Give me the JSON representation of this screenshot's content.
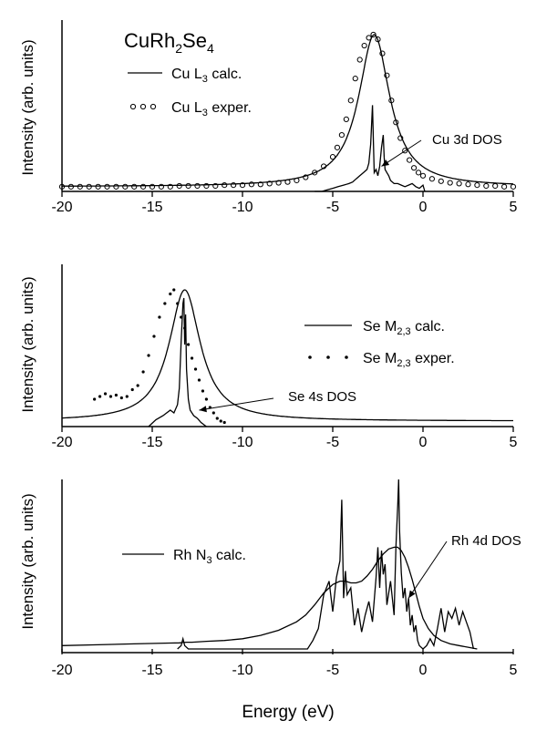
{
  "figure": {
    "xlabel": "Energy (eV)"
  },
  "chart_data": [
    {
      "type": "line",
      "panel": "top",
      "title": "CuRh",
      "title_sub": "2",
      "title_mid": "Se",
      "title_sub2": "4",
      "ylabel": "Intensity (arb. units)",
      "xlim": [
        -20,
        5
      ],
      "ylim": [
        0,
        1
      ],
      "x_ticks": [
        -20,
        -15,
        -10,
        -5,
        0,
        5
      ],
      "x_tick_labels": [
        "-20",
        "-15",
        "-10",
        "-5",
        "0",
        "5"
      ],
      "legend": [
        {
          "symbol": "line",
          "pre": "Cu L",
          "sub": "3",
          "post": " calc."
        },
        {
          "symbol": "circles",
          "pre": "Cu L",
          "sub": "3",
          "post": " exper."
        }
      ],
      "annotation": {
        "text": "Cu 3d DOS",
        "points_to": {
          "x": -2.3,
          "y": 0.16
        }
      },
      "series": [
        {
          "name": "Cu L3 calc.",
          "style": "line",
          "lorentz": {
            "x0": -2.7,
            "gamma": 1.05,
            "peak": 1.0,
            "baseline": 0.03
          }
        },
        {
          "name": "Cu L3 exper.",
          "style": "circles",
          "x": [
            -20,
            -19.5,
            -19,
            -18.5,
            -18,
            -17.5,
            -17,
            -16.5,
            -16,
            -15.5,
            -15,
            -14.5,
            -14,
            -13.5,
            -13,
            -12.5,
            -12,
            -11.5,
            -11,
            -10.5,
            -10,
            -9.5,
            -9,
            -8.5,
            -8,
            -7.5,
            -7,
            -6.5,
            -6,
            -5.5,
            -5,
            -4.75,
            -4.5,
            -4.25,
            -4,
            -3.75,
            -3.5,
            -3.25,
            -3,
            -2.75,
            -2.5,
            -2.25,
            -2,
            -1.75,
            -1.5,
            -1.25,
            -1,
            -0.75,
            -0.5,
            -0.25,
            0,
            0.5,
            1,
            1.5,
            2,
            2.5,
            3,
            3.5,
            4,
            4.5,
            5
          ],
          "y": [
            0.03,
            0.03,
            0.03,
            0.03,
            0.03,
            0.03,
            0.03,
            0.03,
            0.03,
            0.03,
            0.03,
            0.03,
            0.03,
            0.035,
            0.035,
            0.035,
            0.035,
            0.035,
            0.04,
            0.04,
            0.04,
            0.045,
            0.045,
            0.05,
            0.055,
            0.06,
            0.07,
            0.09,
            0.12,
            0.16,
            0.22,
            0.28,
            0.36,
            0.46,
            0.58,
            0.72,
            0.84,
            0.93,
            0.98,
            1.0,
            0.97,
            0.88,
            0.74,
            0.58,
            0.44,
            0.34,
            0.26,
            0.2,
            0.15,
            0.12,
            0.1,
            0.08,
            0.065,
            0.055,
            0.05,
            0.045,
            0.04,
            0.035,
            0.035,
            0.03,
            0.03
          ]
        },
        {
          "name": "Cu 3d DOS",
          "style": "line",
          "x": [
            -6,
            -5.6,
            -5.3,
            -5,
            -4.7,
            -4.4,
            -4.1,
            -3.9,
            -3.7,
            -3.5,
            -3.3,
            -3.1,
            -3,
            -2.9,
            -2.8,
            -2.75,
            -2.7,
            -2.6,
            -2.5,
            -2.4,
            -2.3,
            -2.2,
            -2.15,
            -2.1,
            -2,
            -1.9,
            -1.8,
            -1.6,
            -1.4,
            -1.2,
            -1,
            -0.8,
            -0.6,
            -0.4,
            -0.2,
            0,
            0.1
          ],
          "y": [
            0,
            0,
            0.01,
            0.02,
            0.03,
            0.04,
            0.05,
            0.06,
            0.08,
            0.1,
            0.12,
            0.14,
            0.18,
            0.3,
            0.55,
            0.34,
            0.12,
            0.14,
            0.1,
            0.16,
            0.28,
            0.36,
            0.22,
            0.14,
            0.12,
            0.1,
            0.07,
            0.05,
            0.05,
            0.04,
            0.03,
            0.04,
            0.05,
            0.03,
            0.02,
            0.04,
            0
          ]
        }
      ]
    },
    {
      "type": "line",
      "panel": "middle",
      "ylabel": "Intensity (arb. units)",
      "xlim": [
        -20,
        5
      ],
      "ylim": [
        0,
        1
      ],
      "x_ticks": [
        -20,
        -15,
        -10,
        -5,
        0,
        5
      ],
      "x_tick_labels": [
        "-20",
        "-15",
        "-10",
        "-5",
        "0",
        "5"
      ],
      "legend": [
        {
          "symbol": "line",
          "pre": "Se M",
          "sub": "2,3",
          "post": " calc."
        },
        {
          "symbol": "dots",
          "pre": "Se M",
          "sub": "2,3",
          "post": " exper."
        }
      ],
      "annotation": {
        "text": "Se 4s DOS",
        "points_to": {
          "x": -12.4,
          "y": 0.12
        }
      },
      "series": [
        {
          "name": "Se M2,3 calc.",
          "style": "line",
          "lorentz": {
            "x0": -13.2,
            "gamma": 1.05,
            "peak": 1.0,
            "baseline": 0.04
          }
        },
        {
          "name": "Se M2,3 exper.",
          "style": "dots",
          "x": [
            -18.2,
            -17.9,
            -17.6,
            -17.3,
            -17,
            -16.7,
            -16.4,
            -16.1,
            -15.8,
            -15.5,
            -15.2,
            -14.9,
            -14.6,
            -14.3,
            -14,
            -13.8,
            -13.6,
            -13.4,
            -13.2,
            -13,
            -12.8,
            -12.6,
            -12.4,
            -12.2,
            -12,
            -11.8,
            -11.6,
            -11.4,
            -11.2,
            -11
          ],
          "y": [
            0.2,
            0.22,
            0.24,
            0.22,
            0.23,
            0.21,
            0.22,
            0.27,
            0.3,
            0.4,
            0.52,
            0.66,
            0.8,
            0.9,
            0.97,
            1.0,
            0.9,
            0.8,
            0.72,
            0.6,
            0.5,
            0.42,
            0.34,
            0.26,
            0.2,
            0.14,
            0.1,
            0.06,
            0.04,
            0.03
          ]
        },
        {
          "name": "Se 4s DOS",
          "style": "line",
          "x": [
            -15.2,
            -14.8,
            -14.4,
            -14,
            -13.8,
            -13.6,
            -13.5,
            -13.4,
            -13.3,
            -13.25,
            -13.2,
            -13.15,
            -13.1,
            -13,
            -12.9,
            -12.7,
            -12.5,
            -12.3,
            -12
          ],
          "y": [
            0,
            0.05,
            0.08,
            0.12,
            0.1,
            0.16,
            0.28,
            0.62,
            0.9,
            0.94,
            0.6,
            0.82,
            0.42,
            0.2,
            0.12,
            0.08,
            0.06,
            0.03,
            0
          ]
        }
      ]
    },
    {
      "type": "line",
      "panel": "bottom",
      "ylabel": "Intensity (arb. units)",
      "xlabel": "Energy (eV)",
      "xlim": [
        -20,
        5
      ],
      "ylim": [
        0,
        1
      ],
      "x_ticks": [
        -20,
        -15,
        -10,
        -5,
        0,
        5
      ],
      "x_tick_labels": [
        "-20",
        "-15",
        "-10",
        "-5",
        "0",
        "5"
      ],
      "legend": [
        {
          "symbol": "line",
          "pre": "Rh N",
          "sub": "3",
          "post": " calc."
        }
      ],
      "annotation": {
        "text": "Rh 4d DOS",
        "points_to": {
          "x": -0.8,
          "y": 0.3
        }
      },
      "series": [
        {
          "name": "Rh N3 calc.",
          "style": "line",
          "x": [
            -20,
            -18,
            -16,
            -14,
            -13.5,
            -13.3,
            -13.1,
            -12.8,
            -12,
            -11,
            -10,
            -9,
            -8,
            -7,
            -6.5,
            -6,
            -5.5,
            -5,
            -4.6,
            -4.3,
            -4,
            -3.7,
            -3.4,
            -3.1,
            -2.8,
            -2.5,
            -2.2,
            -1.9,
            -1.6,
            -1.4,
            -1.2,
            -1,
            -0.8,
            -0.6,
            -0.4,
            -0.2,
            0,
            0.3,
            0.6,
            1,
            1.5,
            2,
            2.5,
            3
          ],
          "y": [
            0.02,
            0.025,
            0.03,
            0.035,
            0.036,
            0.038,
            0.04,
            0.04,
            0.045,
            0.05,
            0.06,
            0.08,
            0.11,
            0.16,
            0.2,
            0.26,
            0.33,
            0.38,
            0.4,
            0.4,
            0.39,
            0.39,
            0.4,
            0.43,
            0.47,
            0.52,
            0.56,
            0.59,
            0.6,
            0.6,
            0.58,
            0.54,
            0.48,
            0.41,
            0.33,
            0.25,
            0.18,
            0.12,
            0.08,
            0.05,
            0.03,
            0.02,
            0.01,
            0
          ]
        },
        {
          "name": "Rh 4d DOS",
          "style": "line",
          "x": [
            -13.6,
            -13.4,
            -13.3,
            -13.2,
            -13,
            -6.4,
            -6.1,
            -5.8,
            -5.5,
            -5.2,
            -5,
            -4.8,
            -4.6,
            -4.5,
            -4.4,
            -4.3,
            -4.2,
            -4,
            -3.8,
            -3.6,
            -3.4,
            -3.2,
            -3,
            -2.8,
            -2.6,
            -2.5,
            -2.4,
            -2.3,
            -2.2,
            -2.1,
            -2,
            -1.8,
            -1.6,
            -1.5,
            -1.4,
            -1.35,
            -1.3,
            -1.2,
            -1.1,
            -1,
            -0.9,
            -0.8,
            -0.7,
            -0.6,
            -0.5,
            -0.4,
            -0.3,
            -0.2,
            0,
            0.2,
            0.4,
            0.6,
            0.8,
            1,
            1.2,
            1.4,
            1.6,
            1.8,
            2,
            2.2,
            2.4,
            2.6,
            2.8
          ],
          "y": [
            0,
            0.02,
            0.06,
            0.02,
            0,
            0,
            0.05,
            0.12,
            0.32,
            0.4,
            0.22,
            0.42,
            0.52,
            0.88,
            0.3,
            0.46,
            0.32,
            0.36,
            0.14,
            0.24,
            0.1,
            0.2,
            0.28,
            0.16,
            0.42,
            0.6,
            0.36,
            0.58,
            0.44,
            0.5,
            0.26,
            0.4,
            0.2,
            0.6,
            0.85,
            1.0,
            0.7,
            0.45,
            0.3,
            0.36,
            0.22,
            0.3,
            0.14,
            0.2,
            0.1,
            0.14,
            0.05,
            0.02,
            0,
            0.02,
            0.06,
            0.02,
            0.12,
            0.24,
            0.1,
            0.22,
            0.18,
            0.24,
            0.14,
            0.22,
            0.16,
            0.1,
            0
          ]
        }
      ]
    }
  ]
}
